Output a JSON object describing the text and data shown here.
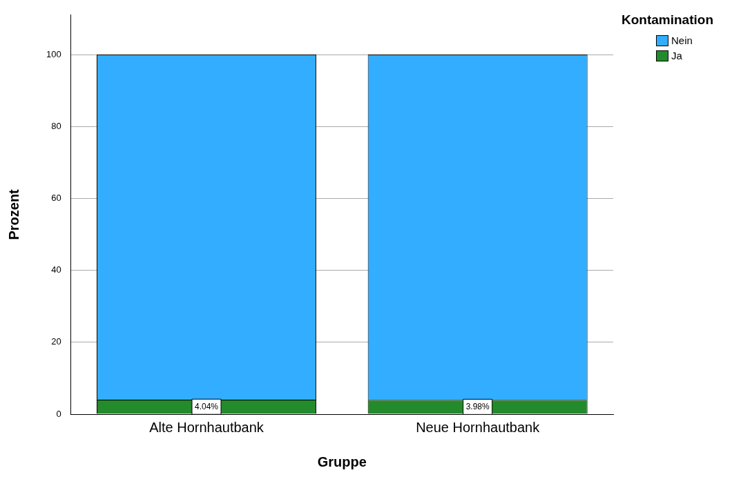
{
  "chart_data": {
    "type": "bar",
    "stacked": true,
    "xlabel": "Gruppe",
    "ylabel": "Prozent",
    "legend_title": "Kontamination",
    "categories": [
      "Alte Hornhautbank",
      "Neue Hornhautbank"
    ],
    "series": [
      {
        "name": "Ja",
        "color": "#238b2c",
        "values": [
          4.04,
          3.98
        ],
        "value_labels": [
          "4.04%",
          "3.98%"
        ]
      },
      {
        "name": "Nein",
        "color": "#33adff",
        "values": [
          95.96,
          96.02
        ]
      }
    ],
    "ylim": [
      0,
      111
    ],
    "yticks": [
      0,
      20,
      40,
      60,
      80,
      100
    ],
    "grid": "y",
    "legend": "top right"
  }
}
